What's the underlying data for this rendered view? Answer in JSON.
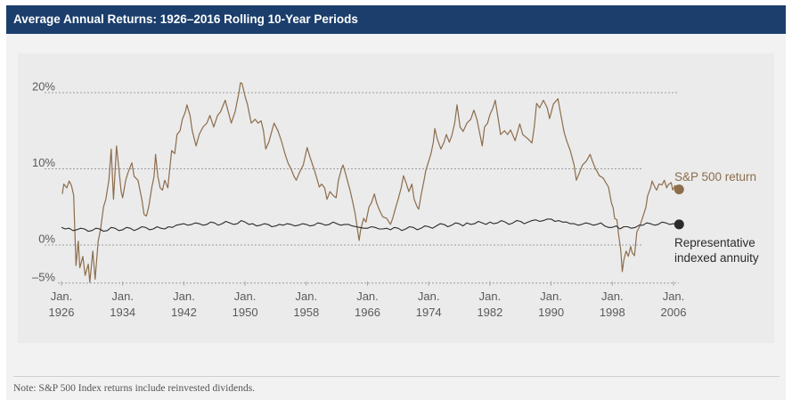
{
  "header": {
    "title": "Average Annual Returns: 1926–2016 Rolling 10-Year Periods"
  },
  "footer": {
    "note": "Note: S&P 500 Index returns include reinvested dividends."
  },
  "colors": {
    "header_bg": "#1b3e6c",
    "sp500": "#8c6d4c",
    "annuity": "#2b2b2b"
  },
  "chart_data": {
    "type": "line",
    "title": "Average Annual Returns: 1926–2016 Rolling 10-Year Periods",
    "xlabel": "",
    "ylabel": "",
    "xlim": [
      1926,
      2006.5
    ],
    "ylim": [
      -5,
      21.5
    ],
    "grid": "horizontal dotted at y ticks",
    "y_ticks": [
      {
        "value": 20,
        "label": "20%"
      },
      {
        "value": 10,
        "label": "10%"
      },
      {
        "value": 0,
        "label": "0%"
      },
      {
        "value": -5,
        "label": "–5%"
      }
    ],
    "x_ticks": [
      {
        "value": 1926,
        "line1": "Jan.",
        "line2": "1926"
      },
      {
        "value": 1934,
        "line1": "Jan.",
        "line2": "1934"
      },
      {
        "value": 1942,
        "line1": "Jan.",
        "line2": "1942"
      },
      {
        "value": 1950,
        "line1": "Jan.",
        "line2": "1950"
      },
      {
        "value": 1958,
        "line1": "Jan.",
        "line2": "1958"
      },
      {
        "value": 1966,
        "line1": "Jan.",
        "line2": "1966"
      },
      {
        "value": 1974,
        "line1": "Jan.",
        "line2": "1974"
      },
      {
        "value": 1982,
        "line1": "Jan.",
        "line2": "1982"
      },
      {
        "value": 1990,
        "line1": "Jan.",
        "line2": "1990"
      },
      {
        "value": 1998,
        "line1": "Jan.",
        "line2": "1998"
      },
      {
        "value": 2006,
        "line1": "Jan.",
        "line2": "2006"
      }
    ],
    "legend_position": "right, at line ends",
    "legend": [
      {
        "label": "S&P 500 return",
        "color": "#8c6d4c"
      },
      {
        "label_lines": [
          "Representative",
          "indexed annuity"
        ],
        "color": "#2b2b2b"
      }
    ],
    "series": [
      {
        "name": "S&P 500 return",
        "color": "#8c6d4c",
        "x": [
          1926.1,
          1926.3,
          1926.7,
          1927.0,
          1927.3,
          1927.6,
          1927.9,
          1928.2,
          1928.4,
          1928.8,
          1929.1,
          1929.5,
          1929.7,
          1930.1,
          1930.4,
          1930.8,
          1931.1,
          1931.5,
          1931.8,
          1932.2,
          1932.5,
          1932.8,
          1933.0,
          1933.2,
          1933.6,
          1933.8,
          1934.0,
          1934.4,
          1934.7,
          1935.2,
          1935.5,
          1936.0,
          1936.5,
          1936.8,
          1937.1,
          1937.4,
          1937.8,
          1938.1,
          1938.3,
          1938.6,
          1938.9,
          1939.2,
          1939.5,
          1939.9,
          1940.1,
          1940.4,
          1940.8,
          1941.1,
          1941.5,
          1941.8,
          1942.2,
          1942.4,
          1942.8,
          1943.1,
          1943.6,
          1944.0,
          1944.5,
          1945.0,
          1945.4,
          1945.9,
          1946.4,
          1946.8,
          1947.4,
          1947.8,
          1948.2,
          1948.7,
          1949.2,
          1949.4,
          1949.6,
          1950.0,
          1950.3,
          1950.8,
          1951.3,
          1951.7,
          1952.1,
          1952.4,
          1952.7,
          1953.1,
          1953.5,
          1953.8,
          1954.3,
          1954.8,
          1955.2,
          1955.6,
          1956.0,
          1956.4,
          1956.7,
          1957.1,
          1957.6,
          1958.1,
          1958.5,
          1959.0,
          1959.3,
          1959.7,
          1960.0,
          1960.4,
          1960.7,
          1961.1,
          1961.5,
          1961.9,
          1962.2,
          1962.6,
          1962.8,
          1963.1,
          1963.5,
          1963.7,
          1964.1,
          1964.4,
          1964.7,
          1964.9,
          1965.1,
          1965.5,
          1965.8,
          1966.2,
          1966.5,
          1966.9,
          1967.2,
          1967.6,
          1968.0,
          1968.5,
          1969.0,
          1969.3,
          1969.7,
          1970.0,
          1970.4,
          1970.7,
          1971.1,
          1971.4,
          1971.8,
          1972.1,
          1972.5,
          1972.7,
          1973.0,
          1973.4,
          1973.6,
          1974.0,
          1974.3,
          1974.6,
          1974.8,
          1975.1,
          1975.6,
          1976.0,
          1976.3,
          1976.7,
          1977.0,
          1977.4,
          1977.7,
          1978.1,
          1978.5,
          1979.0,
          1979.5,
          1979.9,
          1980.3,
          1980.6,
          1981.0,
          1981.3,
          1981.7,
          1982.0,
          1982.4,
          1982.7,
          1983.1,
          1983.4,
          1983.9,
          1984.3,
          1984.7,
          1985.3,
          1985.9,
          1986.3,
          1986.9,
          1987.5,
          1987.8,
          1988.1,
          1988.5,
          1989.0,
          1989.5,
          1989.8,
          1990.3,
          1990.9,
          1991.2,
          1991.7,
          1992.1,
          1992.5,
          1993.0,
          1993.3,
          1993.7,
          1994.1,
          1994.6,
          1995.1,
          1995.4,
          1995.8,
          1996.0,
          1996.3,
          1996.8,
          1997.2,
          1997.5,
          1997.9,
          1998.1,
          1998.3,
          1998.6,
          1998.8,
          1999.1,
          1999.3,
          1999.5,
          1999.8,
          2000.1,
          2000.4,
          2000.6,
          2000.9,
          2001.2,
          2001.6,
          2002.0,
          2002.4,
          2002.6,
          2003.0,
          2003.2,
          2003.6,
          2003.8,
          2004.1,
          2004.5,
          2004.8,
          2005.1,
          2005.3,
          2005.7,
          2005.9,
          2006.2,
          2006.5
        ],
        "values": [
          6.7,
          8.0,
          7.5,
          8.4,
          7.8,
          6.5,
          -2.7,
          0.5,
          -3.0,
          -1.5,
          -4.0,
          -2.5,
          -4.9,
          -0.8,
          -4.5,
          0.5,
          2.0,
          5.0,
          6.0,
          8.5,
          12.6,
          6.0,
          9.5,
          13.0,
          9.0,
          7.0,
          6.2,
          8.5,
          9.5,
          10.8,
          9.0,
          8.5,
          6.0,
          4.0,
          3.8,
          5.0,
          7.5,
          9.0,
          11.9,
          9.0,
          7.5,
          7.2,
          8.5,
          7.5,
          9.5,
          12.4,
          12.0,
          14.5,
          15.0,
          16.5,
          17.5,
          18.4,
          17.0,
          15.0,
          13.0,
          14.5,
          15.5,
          16.0,
          17.0,
          15.5,
          17.0,
          17.5,
          19.0,
          17.5,
          16.0,
          17.5,
          20.0,
          21.3,
          21.2,
          19.5,
          18.5,
          16.0,
          16.5,
          16.0,
          16.3,
          15.0,
          12.6,
          13.5,
          15.0,
          16.0,
          15.0,
          13.5,
          12.0,
          10.8,
          10.0,
          9.0,
          8.5,
          9.5,
          10.5,
          12.8,
          11.5,
          10.0,
          9.0,
          7.6,
          8.0,
          7.5,
          6.0,
          7.0,
          6.5,
          6.2,
          8.5,
          10.0,
          10.5,
          9.5,
          8.0,
          7.3,
          5.5,
          4.0,
          2.0,
          0.6,
          2.0,
          3.5,
          3.0,
          5.0,
          5.5,
          6.7,
          5.5,
          4.5,
          3.7,
          3.5,
          2.7,
          3.5,
          5.0,
          6.0,
          7.5,
          9.1,
          8.0,
          7.0,
          8.0,
          6.0,
          5.0,
          4.7,
          6.5,
          8.5,
          9.7,
          11.0,
          12.0,
          13.5,
          15.3,
          14.0,
          12.6,
          13.5,
          14.5,
          13.5,
          14.3,
          16.0,
          18.4,
          15.5,
          14.9,
          16.0,
          16.5,
          17.7,
          16.5,
          15.0,
          13.0,
          15.5,
          16.0,
          17.1,
          18.0,
          19.0,
          16.5,
          14.5,
          15.0,
          14.5,
          15.1,
          13.7,
          15.9,
          14.5,
          14.0,
          13.4,
          15.5,
          18.6,
          18.0,
          19.0,
          18.0,
          16.6,
          18.5,
          19.2,
          17.5,
          14.8,
          13.5,
          12.4,
          10.5,
          8.5,
          9.5,
          10.5,
          11.0,
          11.9,
          11.0,
          10.0,
          9.7,
          9.1,
          8.8,
          8.1,
          7.6,
          5.5,
          4.9,
          3.5,
          3.3,
          1.5,
          -0.6,
          -3.5,
          -2.0,
          -0.8,
          -1.5,
          -0.2,
          -1.0,
          -1.4,
          1.7,
          2.5,
          3.7,
          5.0,
          6.4,
          7.5,
          8.4,
          7.5,
          7.2,
          8.0,
          7.9,
          8.5,
          7.5,
          7.9,
          8.2,
          7.2,
          7.8,
          7.3
        ]
      },
      {
        "name": "Representative indexed annuity",
        "color": "#2b2b2b",
        "x_start": 1926,
        "x_step": 0.5,
        "values": [
          2.3,
          2.1,
          2.2,
          1.9,
          2.0,
          2.2,
          2.1,
          1.8,
          1.9,
          2.2,
          2.1,
          1.8,
          1.9,
          2.3,
          2.2,
          1.9,
          2.0,
          2.3,
          2.2,
          1.9,
          2.1,
          2.4,
          2.3,
          2.0,
          2.1,
          2.4,
          2.2,
          2.1,
          2.4,
          2.3,
          2.6,
          2.7,
          2.8,
          2.6,
          2.7,
          2.9,
          2.8,
          2.6,
          2.7,
          3.0,
          2.9,
          2.6,
          2.8,
          3.1,
          2.9,
          2.7,
          2.8,
          3.2,
          3.0,
          2.7,
          2.8,
          2.5,
          2.6,
          2.8,
          2.7,
          2.4,
          2.5,
          2.7,
          2.6,
          2.8,
          2.7,
          2.5,
          2.6,
          2.8,
          2.7,
          2.5,
          2.6,
          2.9,
          2.8,
          2.6,
          2.7,
          3.0,
          2.8,
          2.6,
          2.7,
          2.7,
          2.5,
          2.4,
          2.3,
          2.2,
          2.2,
          2.4,
          2.3,
          2.1,
          2.1,
          2.2,
          2.0,
          2.3,
          2.2,
          1.9,
          2.1,
          2.4,
          2.3,
          2.0,
          2.2,
          2.5,
          2.4,
          2.2,
          2.5,
          2.8,
          2.7,
          2.4,
          2.6,
          2.9,
          2.8,
          2.5,
          2.9,
          2.7,
          2.8,
          3.1,
          2.9,
          2.7,
          3.0,
          2.8,
          2.9,
          3.2,
          3.0,
          2.7,
          2.9,
          3.2,
          3.1,
          2.8,
          3.0,
          3.2,
          3.3,
          3.1,
          3.2,
          3.4,
          3.4,
          3.1,
          3.2,
          3.0,
          3.0,
          2.8,
          2.8,
          2.6,
          2.7,
          2.9,
          2.8,
          2.6,
          2.7,
          2.9,
          2.5,
          2.3,
          2.3,
          2.5,
          2.1,
          2.4,
          2.4,
          2.2,
          2.3,
          2.6,
          2.6,
          2.9,
          2.8,
          2.6,
          2.7,
          3.0,
          2.9,
          2.7,
          2.8,
          2.7
        ]
      }
    ]
  }
}
